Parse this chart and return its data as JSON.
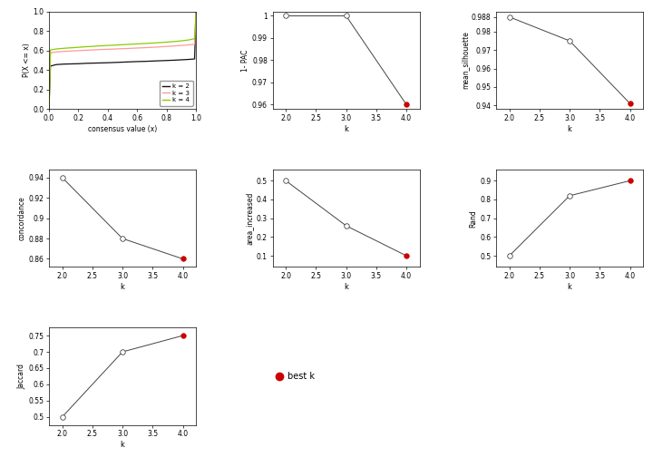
{
  "ecdf": {
    "x": [
      0.0,
      0.01,
      0.05,
      0.1,
      0.15,
      0.2,
      0.25,
      0.3,
      0.35,
      0.4,
      0.45,
      0.5,
      0.55,
      0.6,
      0.65,
      0.7,
      0.75,
      0.8,
      0.85,
      0.9,
      0.95,
      0.99,
      1.0
    ],
    "k2": [
      0.0,
      0.44,
      0.455,
      0.46,
      0.462,
      0.464,
      0.468,
      0.47,
      0.472,
      0.474,
      0.477,
      0.48,
      0.483,
      0.486,
      0.488,
      0.491,
      0.494,
      0.497,
      0.5,
      0.504,
      0.508,
      0.513,
      1.0
    ],
    "k3": [
      0.0,
      0.575,
      0.585,
      0.59,
      0.594,
      0.598,
      0.602,
      0.606,
      0.609,
      0.612,
      0.615,
      0.618,
      0.621,
      0.625,
      0.628,
      0.632,
      0.636,
      0.641,
      0.646,
      0.651,
      0.657,
      0.663,
      1.0
    ],
    "k4": [
      0.0,
      0.605,
      0.615,
      0.622,
      0.627,
      0.632,
      0.638,
      0.642,
      0.647,
      0.651,
      0.655,
      0.659,
      0.663,
      0.667,
      0.671,
      0.675,
      0.68,
      0.685,
      0.691,
      0.698,
      0.708,
      0.72,
      1.0
    ],
    "colors": [
      "#111111",
      "#ff9999",
      "#88cc00"
    ],
    "labels": [
      "k = 2",
      "k = 3",
      "k = 4"
    ],
    "xlabel": "consensus value (x)",
    "ylabel": "P(X <= x)",
    "xlim": [
      0.0,
      1.0
    ],
    "ylim": [
      0.0,
      1.0
    ]
  },
  "pac": {
    "k": [
      2,
      3,
      4
    ],
    "values": [
      1.0,
      1.0,
      0.96
    ],
    "best_k": 4,
    "ylabel": "1- PAC",
    "xlabel": "k",
    "ylim": [
      0.958,
      1.002
    ],
    "yticks": [
      0.96,
      0.97,
      0.98,
      0.99,
      1.0
    ]
  },
  "silhouette": {
    "k": [
      2,
      3,
      4
    ],
    "values": [
      0.988,
      0.975,
      0.941
    ],
    "best_k": 4,
    "ylabel": "mean_silhouette",
    "xlabel": "k",
    "ylim": [
      0.938,
      0.991
    ],
    "yticks": [
      0.94,
      0.95,
      0.96,
      0.97,
      0.98,
      0.988
    ]
  },
  "concordance": {
    "k": [
      2,
      3,
      4
    ],
    "values": [
      0.94,
      0.88,
      0.86
    ],
    "best_k": 4,
    "ylabel": "concordance",
    "xlabel": "k",
    "ylim": [
      0.852,
      0.948
    ],
    "yticks": [
      0.86,
      0.88,
      0.9,
      0.92,
      0.94
    ]
  },
  "area_increased": {
    "k": [
      2,
      3,
      4
    ],
    "values": [
      0.5,
      0.26,
      0.1
    ],
    "best_k": 4,
    "ylabel": "area_increased",
    "xlabel": "k",
    "ylim": [
      0.04,
      0.56
    ],
    "yticks": [
      0.1,
      0.2,
      0.3,
      0.4,
      0.5
    ]
  },
  "rand": {
    "k": [
      2,
      3,
      4
    ],
    "values": [
      0.5,
      0.82,
      0.9
    ],
    "best_k": 4,
    "ylabel": "Rand",
    "xlabel": "k",
    "ylim": [
      0.44,
      0.96
    ],
    "yticks": [
      0.5,
      0.6,
      0.7,
      0.8,
      0.9
    ]
  },
  "jaccard": {
    "k": [
      2,
      3,
      4
    ],
    "values": [
      0.5,
      0.7,
      0.75
    ],
    "best_k": 4,
    "ylabel": "Jaccard",
    "xlabel": "k",
    "ylim": [
      0.475,
      0.775
    ],
    "yticks": [
      0.5,
      0.55,
      0.6,
      0.65,
      0.7,
      0.75
    ]
  },
  "best_k_color": "#cc0000",
  "line_color": "#444444",
  "bg_color": "white"
}
